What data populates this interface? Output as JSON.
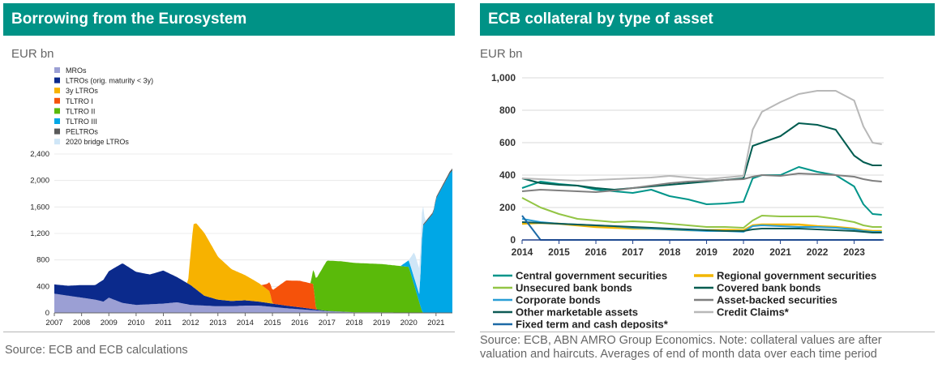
{
  "left": {
    "title": "Borrowing from the Eurosystem",
    "unit": "EUR bn",
    "source": "Source: ECB and ECB calculations"
  },
  "right": {
    "title": "ECB collateral by type of asset",
    "unit": "EUR bn",
    "source_line1": "Source: ECB, ABN AMRO Group Economics. Note: collateral values are after",
    "source_line2": "valuation and haircuts. Averages of end of month data over each time period"
  },
  "chart_data": [
    {
      "type": "area",
      "title": "Borrowing from the Eurosystem",
      "ylabel": "EUR bn",
      "ylim": [
        0,
        2400
      ],
      "yticks": [
        "0",
        "400",
        "800",
        "1,200",
        "1,600",
        "2,000",
        "2,400"
      ],
      "xlim": [
        2007,
        2021.6
      ],
      "xticks": [
        "2007",
        "2008",
        "2009",
        "2010",
        "2011",
        "2012",
        "2013",
        "2014",
        "2015",
        "2016",
        "2017",
        "2018",
        "2019",
        "2020",
        "2021"
      ],
      "legend": [
        {
          "name": "MROs",
          "color": "#9b9fd4"
        },
        {
          "name": "LTROs (orig. maturity < 3y)",
          "color": "#0b2a8c"
        },
        {
          "name": "3y LTROs",
          "color": "#f7b200"
        },
        {
          "name": "TLTRO I",
          "color": "#f5520a"
        },
        {
          "name": "TLTRO II",
          "color": "#5aba0a"
        },
        {
          "name": "TLTRO III",
          "color": "#00a7e6"
        },
        {
          "name": "PELTROs",
          "color": "#5a5a5a"
        },
        {
          "name": "2020 bridge LTROs",
          "color": "#cfe6f7"
        }
      ],
      "series": [
        {
          "name": "MROs",
          "x": [
            2007,
            2007.5,
            2008,
            2008.5,
            2008.8,
            2009,
            2009.5,
            2010,
            2010.5,
            2011,
            2011.5,
            2012,
            2012.5,
            2013,
            2013.5,
            2014,
            2014.5,
            2015,
            2015.5,
            2016,
            2017,
            2018,
            2019,
            2020,
            2021,
            2021.6
          ],
          "values": [
            290,
            260,
            230,
            200,
            170,
            230,
            150,
            120,
            130,
            140,
            160,
            120,
            110,
            100,
            100,
            110,
            110,
            90,
            70,
            55,
            25,
            10,
            8,
            5,
            3,
            2
          ]
        },
        {
          "name": "LTROs (orig. maturity < 3y)",
          "x": [
            2007,
            2007.5,
            2008,
            2008.5,
            2008.8,
            2009,
            2009.5,
            2010,
            2010.5,
            2011,
            2011.5,
            2012,
            2012.5,
            2013,
            2013.5,
            2014,
            2014.5,
            2015,
            2015.5,
            2016,
            2017,
            2018,
            2019,
            2020,
            2021,
            2021.6
          ],
          "values": [
            140,
            150,
            190,
            220,
            330,
            400,
            600,
            500,
            450,
            500,
            380,
            300,
            150,
            100,
            80,
            80,
            60,
            50,
            40,
            30,
            5,
            0,
            0,
            0,
            0,
            0
          ]
        },
        {
          "name": "3y LTROs",
          "x": [
            2007,
            2011.9,
            2012,
            2012.1,
            2012.2,
            2012.5,
            2013,
            2013.5,
            2014,
            2014.5,
            2014.9,
            2015,
            2015.5,
            2016,
            2021.6
          ],
          "values": [
            0,
            0,
            490,
            950,
            1000,
            950,
            650,
            480,
            380,
            280,
            180,
            0,
            0,
            0,
            0
          ]
        },
        {
          "name": "TLTRO I",
          "x": [
            2007,
            2014.6,
            2014.8,
            2015,
            2015.5,
            2016,
            2016.5,
            2016.6,
            2021.6
          ],
          "values": [
            0,
            0,
            80,
            200,
            380,
            400,
            380,
            0,
            0
          ]
        },
        {
          "name": "TLTRO II",
          "x": [
            2007,
            2016.4,
            2016.6,
            2017,
            2017.5,
            2018,
            2019,
            2020,
            2020.5,
            2021.6
          ],
          "values": [
            0,
            0,
            460,
            760,
            760,
            745,
            730,
            690,
            0,
            0
          ]
        },
        {
          "name": "TLTRO III",
          "x": [
            2007,
            2019.7,
            2020,
            2020.4,
            2020.5,
            2020.9,
            2021,
            2021.5,
            2021.6
          ],
          "values": [
            0,
            0,
            100,
            120,
            1300,
            1500,
            1720,
            2100,
            2150
          ]
        },
        {
          "name": "PELTROs",
          "x": [
            2007,
            2020.4,
            2020.5,
            2021.6
          ],
          "values": [
            0,
            0,
            20,
            30
          ]
        },
        {
          "name": "2020 bridge LTROs",
          "x": [
            2007,
            2020,
            2020.2,
            2020.5,
            2020.6,
            2021.6
          ],
          "values": [
            0,
            0,
            390,
            390,
            0,
            0
          ]
        }
      ]
    },
    {
      "type": "line",
      "title": "ECB collateral by type of asset",
      "ylabel": "EUR bn",
      "ylim": [
        0,
        1000
      ],
      "yticks": [
        "0",
        "200",
        "400",
        "600",
        "800",
        "1,000"
      ],
      "xlim": [
        2014,
        2023.8
      ],
      "xticks": [
        "2014",
        "2015",
        "2016",
        "2017",
        "2018",
        "2019",
        "2020",
        "2021",
        "2022",
        "2023"
      ],
      "x": [
        2014,
        2014.5,
        2015,
        2015.5,
        2016,
        2016.5,
        2017,
        2017.5,
        2018,
        2018.5,
        2019,
        2019.5,
        2020,
        2020.25,
        2020.5,
        2021,
        2021.5,
        2022,
        2022.5,
        2023,
        2023.25,
        2023.5,
        2023.75
      ],
      "series": [
        {
          "name": "Central government securities",
          "color": "#00958a",
          "values": [
            320,
            360,
            345,
            335,
            310,
            300,
            290,
            310,
            270,
            250,
            220,
            225,
            235,
            380,
            400,
            400,
            450,
            420,
            400,
            330,
            220,
            160,
            155
          ]
        },
        {
          "name": "Regional government securities",
          "color": "#f2b600",
          "values": [
            100,
            105,
            100,
            90,
            80,
            75,
            70,
            70,
            65,
            60,
            60,
            62,
            60,
            90,
            95,
            95,
            95,
            85,
            80,
            70,
            60,
            55,
            55
          ]
        },
        {
          "name": "Unsecured bank bonds",
          "color": "#93c545",
          "values": [
            260,
            200,
            160,
            130,
            120,
            110,
            115,
            110,
            100,
            90,
            80,
            80,
            75,
            120,
            150,
            145,
            145,
            145,
            130,
            110,
            90,
            80,
            80
          ]
        },
        {
          "name": "Covered bank bonds",
          "color": "#005c50",
          "values": [
            380,
            350,
            340,
            335,
            320,
            310,
            320,
            330,
            340,
            350,
            360,
            370,
            380,
            580,
            600,
            640,
            720,
            710,
            680,
            520,
            480,
            460,
            460
          ]
        },
        {
          "name": "Corporate bonds",
          "color": "#2a9fd6",
          "values": [
            130,
            110,
            100,
            95,
            90,
            85,
            75,
            70,
            65,
            60,
            55,
            55,
            50,
            85,
            90,
            85,
            80,
            80,
            75,
            65,
            55,
            50,
            50
          ]
        },
        {
          "name": "Asset-backed securities",
          "color": "#7f7f7f",
          "values": [
            300,
            310,
            305,
            300,
            295,
            305,
            320,
            335,
            350,
            360,
            365,
            370,
            375,
            390,
            400,
            395,
            410,
            405,
            400,
            390,
            375,
            365,
            360
          ]
        },
        {
          "name": "Other marketable assets",
          "color": "#0e5a55",
          "values": [
            110,
            105,
            100,
            95,
            90,
            85,
            80,
            75,
            70,
            65,
            60,
            55,
            55,
            65,
            70,
            70,
            70,
            65,
            60,
            55,
            50,
            45,
            45
          ]
        },
        {
          "name": "Credit Claims*",
          "color": "#b8b8b8",
          "values": [
            380,
            375,
            370,
            365,
            370,
            375,
            380,
            385,
            395,
            385,
            375,
            385,
            395,
            680,
            790,
            850,
            900,
            920,
            920,
            860,
            700,
            600,
            590
          ]
        },
        {
          "name": "Fixed term and cash deposits*",
          "color": "#1d6aa6",
          "values": [
            150,
            0,
            0,
            0,
            0,
            0,
            0,
            0,
            0,
            0,
            0,
            0,
            0,
            0,
            0,
            0,
            0,
            0,
            0,
            0,
            0,
            0,
            0
          ]
        }
      ]
    }
  ]
}
